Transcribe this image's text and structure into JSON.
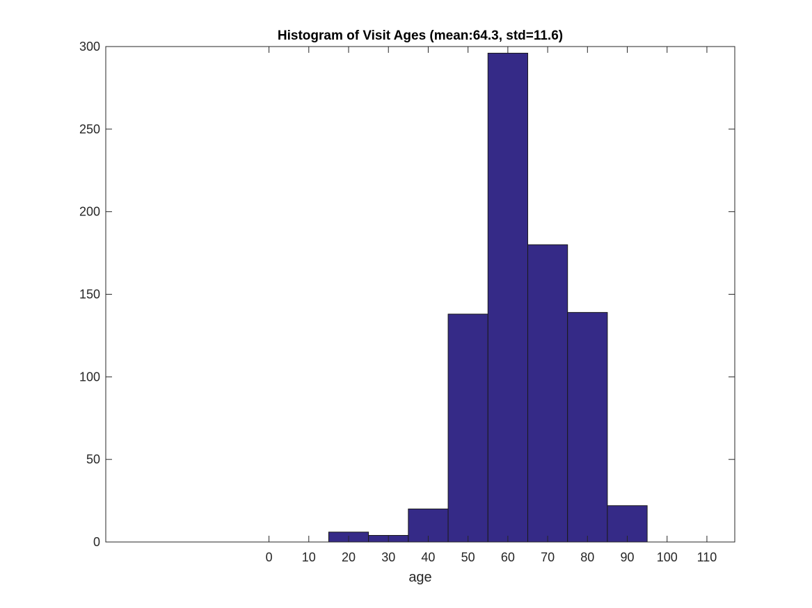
{
  "chart_data": {
    "type": "bar",
    "title": "Histogram of Visit Ages (mean:64.3, std=11.6)",
    "xlabel": "age",
    "ylabel": "",
    "bin_width": 10,
    "bin_centers": [
      -30,
      -20,
      -10,
      0,
      10,
      20,
      30,
      40,
      50,
      60,
      70,
      80,
      90,
      100,
      110
    ],
    "values": [
      0,
      0,
      0,
      0,
      0,
      6,
      4,
      20,
      138,
      296,
      180,
      139,
      22,
      0,
      0
    ],
    "xlim": [
      -41,
      117
    ],
    "ylim": [
      0,
      300
    ],
    "xticks": [
      0,
      10,
      20,
      30,
      40,
      50,
      60,
      70,
      80,
      90,
      100,
      110
    ],
    "xtick_labels": [
      "0",
      "10",
      "20",
      "30",
      "40",
      "50",
      "60",
      "70",
      "80",
      "90",
      "100",
      "110"
    ],
    "yticks": [
      0,
      50,
      100,
      150,
      200,
      250,
      300
    ],
    "ytick_labels": [
      "0",
      "50",
      "100",
      "150",
      "200",
      "250",
      "300"
    ],
    "grid": false,
    "box": true,
    "bar_color": "#352a87",
    "edge_color": "#1a1a1a"
  }
}
